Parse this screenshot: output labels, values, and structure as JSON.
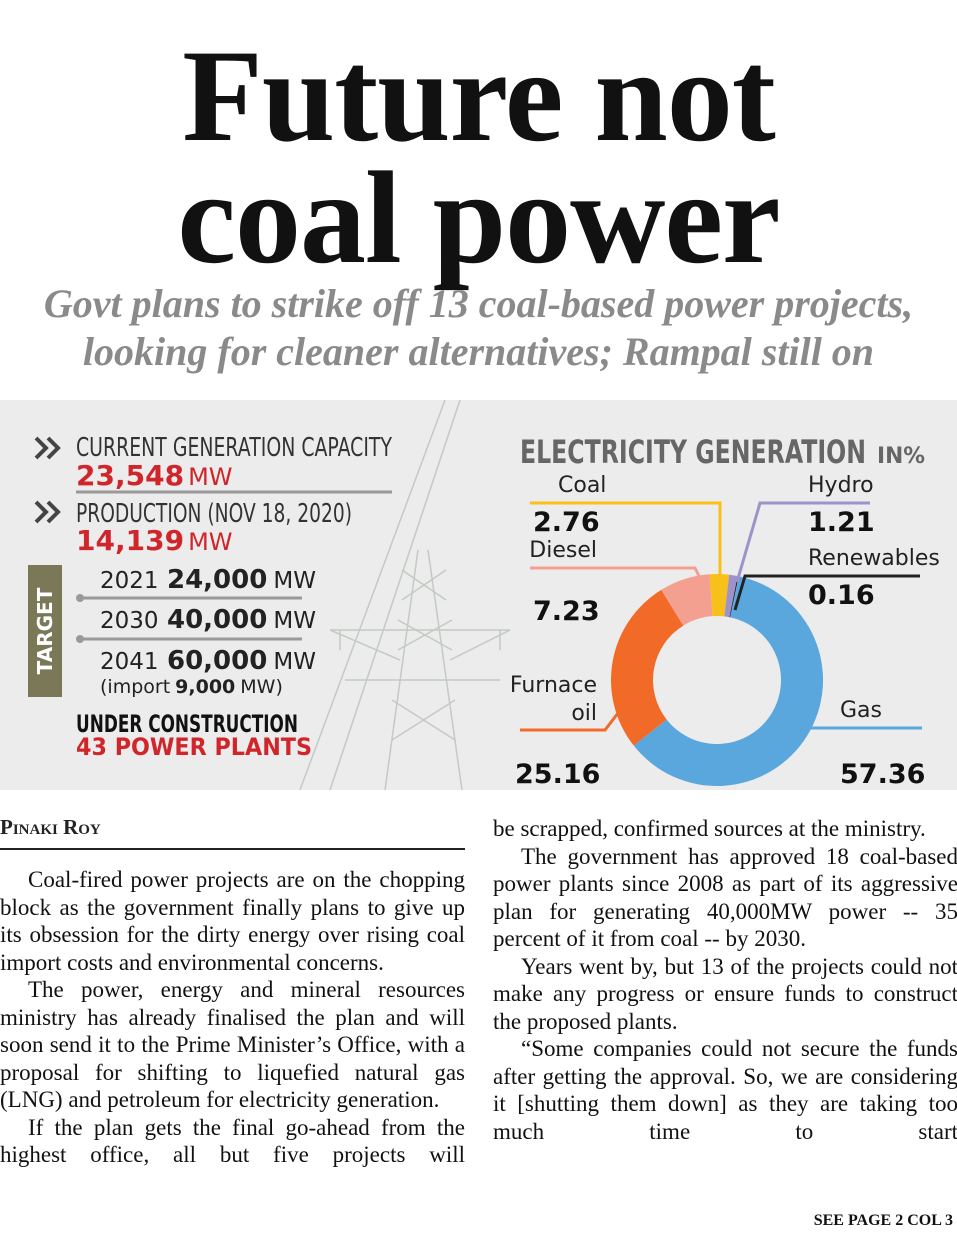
{
  "headline": [
    "Future not",
    "coal power"
  ],
  "subheadline": [
    "Govt plans to strike off 13 coal-based power projects,",
    "looking for cleaner alternatives; Rampal still on"
  ],
  "stats": {
    "current": {
      "label": "CURRENT GENERATION CAPACITY",
      "value": "23,548",
      "unit": "MW"
    },
    "production": {
      "label": "PRODUCTION (NOV 18, 2020)",
      "value": "14,139",
      "unit": "MW"
    },
    "target": {
      "label": "TARGET",
      "rows": [
        {
          "year": "2021",
          "value": "24,000",
          "unit": "MW"
        },
        {
          "year": "2030",
          "value": "40,000",
          "unit": "MW"
        },
        {
          "year": "2041",
          "value": "60,000",
          "unit": "MW"
        }
      ],
      "note": {
        "prefix": "(import",
        "value": "9,000",
        "suffix": "MW)"
      }
    },
    "under_construction": {
      "label": "UNDER CONSTRUCTION",
      "value": "43 POWER PLANTS"
    }
  },
  "chart_data": {
    "type": "donut",
    "title": "ELECTRICITY GENERATION",
    "unit_label": "IN%",
    "categories": [
      "Coal",
      "Hydro",
      "Renewables",
      "Gas",
      "Furnace oil",
      "Diesel"
    ],
    "values": [
      2.76,
      1.21,
      0.16,
      57.36,
      25.16,
      7.23
    ],
    "colors": [
      "#f8c11a",
      "#9d92c9",
      "#222222",
      "#5aa7dd",
      "#f26a28",
      "#f4a091"
    ]
  },
  "byline": "Pinaki Roy",
  "columns": [
    {
      "paragraphs": [
        "Coal-fired power projects are on the chopping block as the government finally plans to give up its obsession for the dirty energy over rising coal import costs and environmental concerns.",
        "The power, energy and mineral resources ministry has already finalised the plan and will soon send it to the Prime Minister’s Office, with a proposal for shifting to liquefied natural gas (LNG) and petroleum for electricity generation.",
        "If the plan gets the final go-ahead from the highest office, all but five projects will"
      ]
    },
    {
      "paragraphs": [
        "be scrapped, confirmed sources at the ministry.",
        "The government has approved 18 coal-based power plants since 2008 as part of its aggressive plan for generating 40,000MW power -- 35 percent of it from coal -- by 2030.",
        "Years went by, but 13 of the projects could not make any progress or ensure funds to construct the proposed plants.",
        "“Some companies could not secure the funds after getting the approval. So, we are considering it [shutting them down] as they are taking too much time to start"
      ]
    }
  ],
  "jump": "SEE PAGE 2 COL 3"
}
